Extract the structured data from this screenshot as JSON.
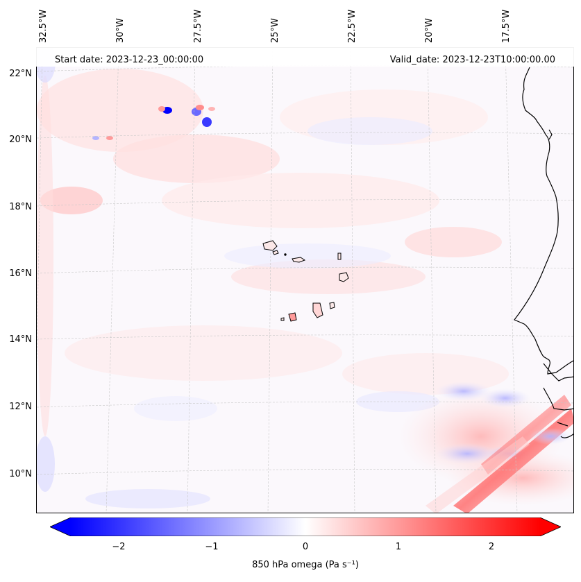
{
  "map": {
    "start_date": "Start date: 2023-12-23_00:00:00",
    "valid_date": "Valid_date: 2023-12-23T10:00:00.00",
    "lon_labels": [
      "32.5°W",
      "30°W",
      "27.5°W",
      "25°W",
      "22.5°W",
      "20°W",
      "17.5°W"
    ],
    "lat_labels": [
      "22°N",
      "20°N",
      "18°N",
      "16°N",
      "14°N",
      "12°N",
      "10°N"
    ],
    "lon_range": [
      -32.5,
      -15.5
    ],
    "lat_range": [
      9.0,
      22.7
    ],
    "variable": "850 hPa omega (Pa s⁻¹)",
    "colormap": "bwr",
    "colors": {
      "negative": "#0000ff",
      "zero": "#ffffff",
      "positive": "#ff0000",
      "coast": "#000000",
      "grid": "#c8c8c8"
    }
  },
  "colorbar": {
    "ticks": [
      "−2",
      "−1",
      "0",
      "1",
      "2"
    ],
    "tick_values": [
      -2,
      -1,
      0,
      1,
      2
    ],
    "range": [
      -2.5,
      2.5
    ],
    "label": "850 hPa omega (Pa s⁻¹)"
  }
}
